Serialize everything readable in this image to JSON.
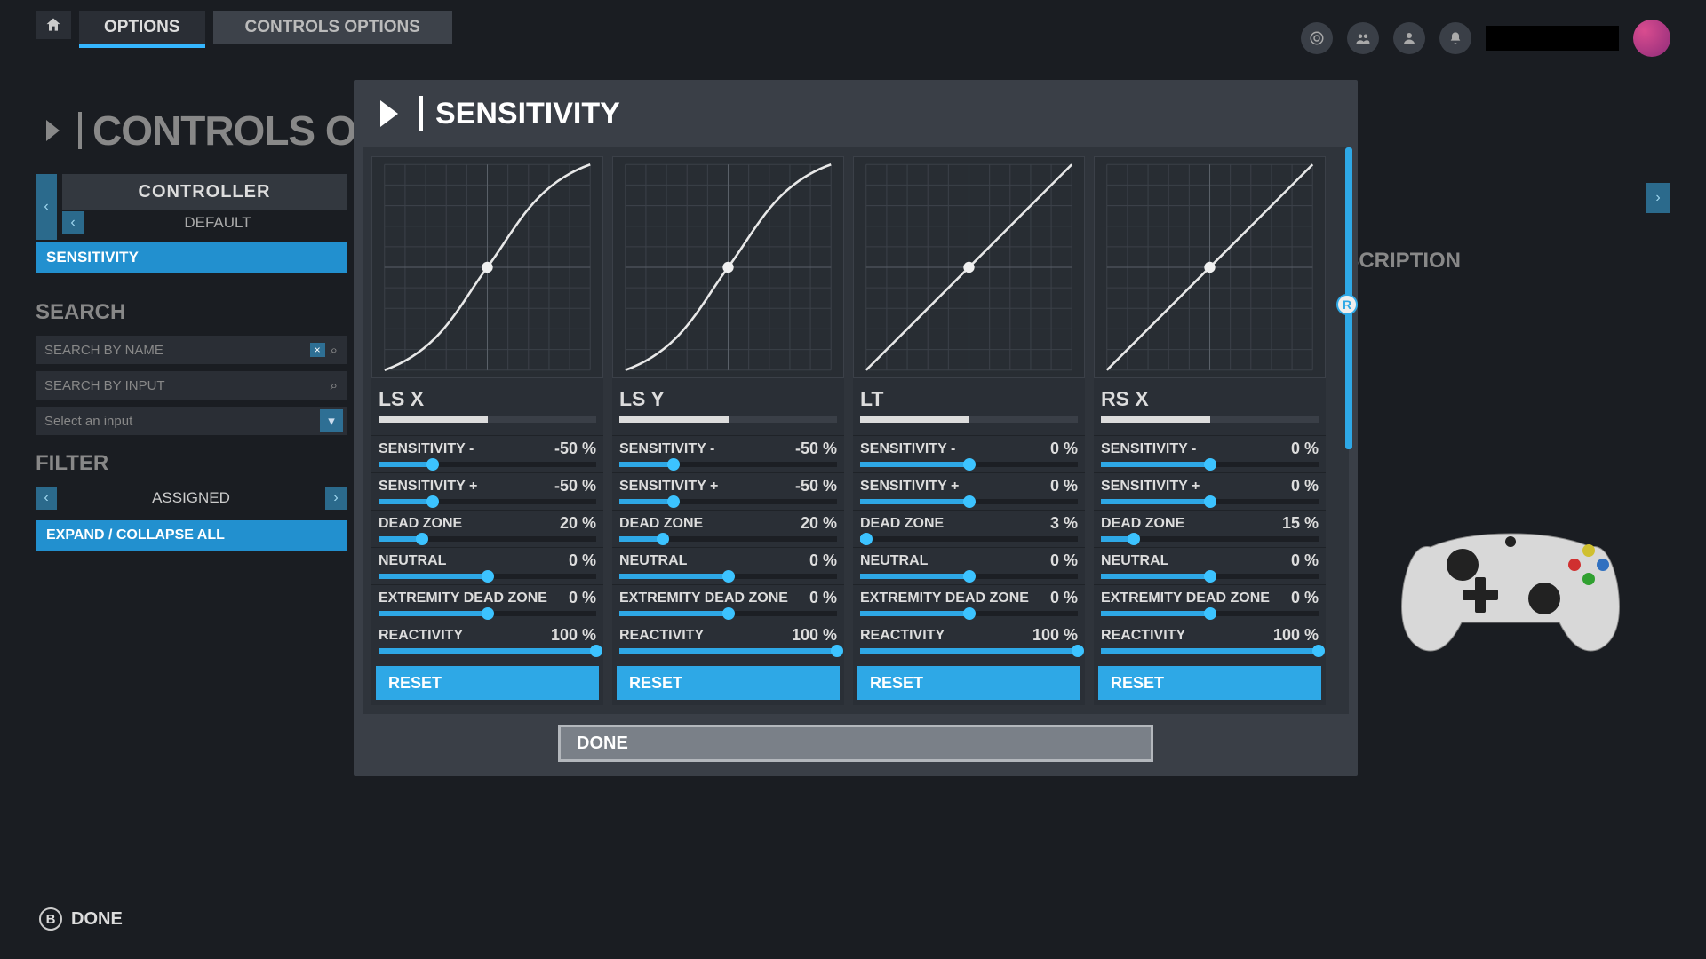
{
  "topbar": {
    "options_label": "OPTIONS",
    "controls_label": "CONTROLS OPTIONS"
  },
  "background": {
    "title": "CONTROLS OPTIONS",
    "controller_header": "CONTROLLER",
    "default_label": "DEFAULT",
    "sensitivity_row": "SENSITIVITY",
    "search_section": "SEARCH",
    "search_name_placeholder": "SEARCH BY NAME",
    "search_input_placeholder": "SEARCH BY INPUT",
    "select_input_label": "Select an input",
    "filter_section": "FILTER",
    "assigned_label": "ASSIGNED",
    "expand_label": "EXPAND / COLLAPSE ALL",
    "description_heading": "DESCRIPTION"
  },
  "modal": {
    "title": "SENSITIVITY",
    "done_label": "DONE",
    "r_indicator": "R",
    "reset_label": "RESET",
    "param_labels": {
      "sens_minus": "SENSITIVITY -",
      "sens_plus": "SENSITIVITY +",
      "dead_zone": "DEAD ZONE",
      "neutral": "NEUTRAL",
      "extremity": "EXTREMITY DEAD ZONE",
      "reactivity": "REACTIVITY"
    },
    "colors": {
      "accent": "#2ea8e6",
      "curve_grid": "#3b4048",
      "curve_line": "#e8e8e8",
      "curve_dot": "#f0f0f0"
    },
    "axes": [
      {
        "title": "LS X",
        "bar_fill_pct": 50,
        "curve_type": "sigmoid",
        "params": [
          {
            "k": "sens_minus",
            "value": "-50 %",
            "slider_pct": 25
          },
          {
            "k": "sens_plus",
            "value": "-50 %",
            "slider_pct": 25
          },
          {
            "k": "dead_zone",
            "value": "20 %",
            "slider_pct": 20
          },
          {
            "k": "neutral",
            "value": "0 %",
            "slider_pct": 50
          },
          {
            "k": "extremity",
            "value": "0 %",
            "slider_pct": 50
          },
          {
            "k": "reactivity",
            "value": "100 %",
            "slider_pct": 100
          }
        ]
      },
      {
        "title": "LS Y",
        "bar_fill_pct": 50,
        "curve_type": "sigmoid",
        "params": [
          {
            "k": "sens_minus",
            "value": "-50 %",
            "slider_pct": 25
          },
          {
            "k": "sens_plus",
            "value": "-50 %",
            "slider_pct": 25
          },
          {
            "k": "dead_zone",
            "value": "20 %",
            "slider_pct": 20
          },
          {
            "k": "neutral",
            "value": "0 %",
            "slider_pct": 50
          },
          {
            "k": "extremity",
            "value": "0 %",
            "slider_pct": 50
          },
          {
            "k": "reactivity",
            "value": "100 %",
            "slider_pct": 100
          }
        ]
      },
      {
        "title": "LT",
        "bar_fill_pct": 50,
        "curve_type": "linear",
        "params": [
          {
            "k": "sens_minus",
            "value": "0 %",
            "slider_pct": 50
          },
          {
            "k": "sens_plus",
            "value": "0 %",
            "slider_pct": 50
          },
          {
            "k": "dead_zone",
            "value": "3 %",
            "slider_pct": 3
          },
          {
            "k": "neutral",
            "value": "0 %",
            "slider_pct": 50
          },
          {
            "k": "extremity",
            "value": "0 %",
            "slider_pct": 50
          },
          {
            "k": "reactivity",
            "value": "100 %",
            "slider_pct": 100
          }
        ]
      },
      {
        "title": "RS X",
        "bar_fill_pct": 50,
        "curve_type": "linear",
        "params": [
          {
            "k": "sens_minus",
            "value": "0 %",
            "slider_pct": 50
          },
          {
            "k": "sens_plus",
            "value": "0 %",
            "slider_pct": 50
          },
          {
            "k": "dead_zone",
            "value": "15 %",
            "slider_pct": 15
          },
          {
            "k": "neutral",
            "value": "0 %",
            "slider_pct": 50
          },
          {
            "k": "extremity",
            "value": "0 %",
            "slider_pct": 50
          },
          {
            "k": "reactivity",
            "value": "100 %",
            "slider_pct": 100
          }
        ]
      }
    ]
  },
  "footer": {
    "done_label": "DONE",
    "button_glyph": "B"
  }
}
